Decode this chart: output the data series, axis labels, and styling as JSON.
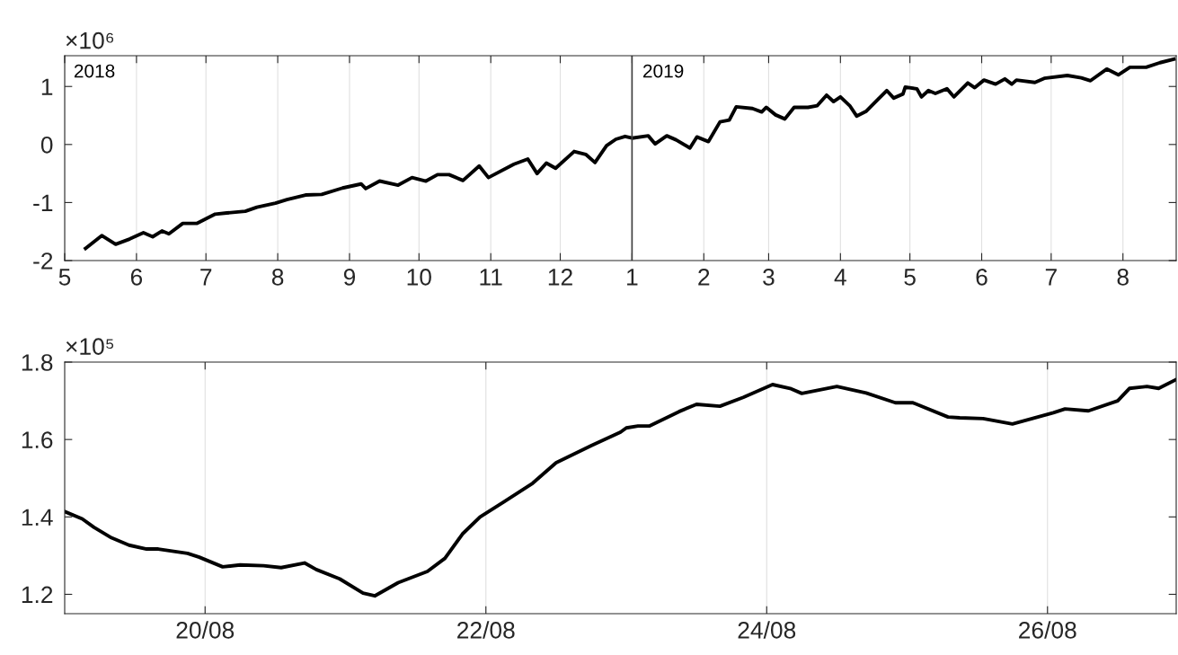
{
  "chart_data": [
    {
      "type": "line",
      "annotations": [
        "×10⁶",
        "2018"
      ],
      "x": [
        "2018-05-10",
        "2018-05-17",
        "2018-05-23",
        "2018-05-29",
        "2018-06-04",
        "2018-06-08",
        "2018-06-12",
        "2018-06-15",
        "2018-06-21",
        "2018-06-27",
        "2018-07-05",
        "2018-07-10",
        "2018-07-18",
        "2018-07-23",
        "2018-07-31",
        "2018-08-05",
        "2018-08-13",
        "2018-08-20",
        "2018-08-29",
        "2018-09-06",
        "2018-09-08",
        "2018-09-14",
        "2018-09-22",
        "2018-09-28",
        "2018-10-04",
        "2018-10-09",
        "2018-10-14",
        "2018-10-20",
        "2018-10-27",
        "2018-10-31",
        "2018-11-11",
        "2018-11-17",
        "2018-11-21",
        "2018-11-25",
        "2018-11-29",
        "2018-12-07",
        "2018-12-12",
        "2018-12-16",
        "2018-12-21",
        "2018-12-25",
        "2018-12-29",
        "2019-01-01",
        "2019-01-08",
        "2019-01-11",
        "2019-01-16",
        "2019-01-20",
        "2019-01-26",
        "2019-01-29",
        "2019-02-03",
        "2019-02-08",
        "2019-02-12",
        "2019-02-15",
        "2019-02-22",
        "2019-02-26",
        "2019-02-28",
        "2019-03-04",
        "2019-03-08",
        "2019-03-12",
        "2019-03-18",
        "2019-03-22",
        "2019-03-26",
        "2019-03-29",
        "2019-04-01",
        "2019-04-05",
        "2019-04-08",
        "2019-04-12",
        "2019-04-17",
        "2019-04-21",
        "2019-04-24",
        "2019-04-28",
        "2019-04-29",
        "2019-05-04",
        "2019-05-06",
        "2019-05-09",
        "2019-05-12",
        "2019-05-17",
        "2019-05-20",
        "2019-05-26",
        "2019-05-29",
        "2019-06-02",
        "2019-06-07",
        "2019-06-11",
        "2019-06-14",
        "2019-06-16",
        "2019-06-24",
        "2019-06-28",
        "2019-07-08",
        "2019-07-14",
        "2019-07-18",
        "2019-07-25",
        "2019-07-30",
        "2019-08-04",
        "2019-08-11",
        "2019-08-17",
        "2019-08-23"
      ],
      "series": [
        {
          "color": "#000000",
          "values": [
            -1.79,
            -1.57,
            -1.72,
            -1.63,
            -1.52,
            -1.59,
            -1.49,
            -1.54,
            -1.36,
            -1.36,
            -1.2,
            -1.18,
            -1.15,
            -1.08,
            -1.01,
            -0.95,
            -0.87,
            -0.86,
            -0.75,
            -0.68,
            -0.76,
            -0.63,
            -0.7,
            -0.57,
            -0.63,
            -0.52,
            -0.52,
            -0.62,
            -0.37,
            -0.57,
            -0.34,
            -0.25,
            -0.5,
            -0.32,
            -0.41,
            -0.12,
            -0.17,
            -0.31,
            -0.02,
            0.09,
            0.14,
            0.11,
            0.15,
            0.01,
            0.15,
            0.08,
            -0.06,
            0.13,
            0.05,
            0.39,
            0.42,
            0.65,
            0.62,
            0.56,
            0.64,
            0.51,
            0.44,
            0.64,
            0.64,
            0.67,
            0.85,
            0.74,
            0.82,
            0.67,
            0.49,
            0.57,
            0.77,
            0.93,
            0.8,
            0.87,
            0.99,
            0.96,
            0.82,
            0.93,
            0.88,
            0.96,
            0.82,
            1.06,
            0.98,
            1.11,
            1.04,
            1.13,
            1.04,
            1.11,
            1.07,
            1.14,
            1.19,
            1.15,
            1.1,
            1.3,
            1.2,
            1.33,
            1.33,
            1.41,
            1.47
          ]
        }
      ],
      "xlim": [
        "2018-05-01",
        "2019-08-24"
      ],
      "xticks": [
        {
          "value": "2018-05-01",
          "label": "5"
        },
        {
          "value": "2018-06-01",
          "label": "6"
        },
        {
          "value": "2018-07-01",
          "label": "7"
        },
        {
          "value": "2018-08-01",
          "label": "8"
        },
        {
          "value": "2018-09-01",
          "label": "9"
        },
        {
          "value": "2018-10-01",
          "label": "10"
        },
        {
          "value": "2018-11-01",
          "label": "11"
        },
        {
          "value": "2018-12-01",
          "label": "12"
        },
        {
          "value": "2019-01-01",
          "label": "1"
        },
        {
          "value": "2019-02-01",
          "label": "2"
        },
        {
          "value": "2019-03-01",
          "label": "3"
        },
        {
          "value": "2019-04-01",
          "label": "4"
        },
        {
          "value": "2019-05-01",
          "label": "5"
        },
        {
          "value": "2019-06-01",
          "label": "6"
        },
        {
          "value": "2019-07-01",
          "label": "7"
        },
        {
          "value": "2019-08-01",
          "label": "8"
        }
      ],
      "ylim": [
        -2,
        1.53
      ],
      "yticks": [
        -2,
        -1,
        0,
        1
      ],
      "ref_lines": [
        {
          "axis": "x",
          "value": "2019-01-01",
          "label": "2019",
          "color": "#404040"
        }
      ],
      "grid": "x"
    },
    {
      "type": "line",
      "annotations": [
        "×10⁵"
      ],
      "x": [
        "2019-08-19T00:00",
        "2019-08-19T03:00",
        "2019-08-19T05:00",
        "2019-08-19T08:00",
        "2019-08-19T11:00",
        "2019-08-19T14:00",
        "2019-08-19T16:00",
        "2019-08-19T21:00",
        "2019-08-19T23:00",
        "2019-08-20T03:00",
        "2019-08-20T06:00",
        "2019-08-20T10:00",
        "2019-08-20T13:00",
        "2019-08-20T17:00",
        "2019-08-20T19:00",
        "2019-08-20T23:00",
        "2019-08-21T03:00",
        "2019-08-21T05:00",
        "2019-08-21T09:00",
        "2019-08-21T14:00",
        "2019-08-21T17:00",
        "2019-08-21T20:00",
        "2019-08-21T23:00",
        "2019-08-22T03:00",
        "2019-08-22T08:00",
        "2019-08-22T12:00",
        "2019-08-22T18:00",
        "2019-08-22T23:00",
        "2019-08-23T00:00",
        "2019-08-23T02:00",
        "2019-08-23T04:00",
        "2019-08-23T09:00",
        "2019-08-23T12:00",
        "2019-08-23T16:00",
        "2019-08-23T20:00",
        "2019-08-24T01:00",
        "2019-08-24T04:00",
        "2019-08-24T06:00",
        "2019-08-24T12:00",
        "2019-08-24T17:00",
        "2019-08-24T22:00",
        "2019-08-25T01:00",
        "2019-08-25T07:00",
        "2019-08-25T09:00",
        "2019-08-25T13:00",
        "2019-08-25T18:00",
        "2019-08-26T01:00",
        "2019-08-26T03:00",
        "2019-08-26T07:00",
        "2019-08-26T12:00",
        "2019-08-26T14:00",
        "2019-08-26T17:00",
        "2019-08-26T19:00",
        "2019-08-26T22:00"
      ],
      "series": [
        {
          "color": "#000000",
          "values": [
            1.414,
            1.395,
            1.373,
            1.346,
            1.327,
            1.317,
            1.317,
            1.306,
            1.296,
            1.271,
            1.276,
            1.274,
            1.269,
            1.281,
            1.264,
            1.24,
            1.203,
            1.196,
            1.23,
            1.259,
            1.293,
            1.356,
            1.4,
            1.438,
            1.487,
            1.54,
            1.584,
            1.619,
            1.63,
            1.635,
            1.635,
            1.672,
            1.691,
            1.686,
            1.709,
            1.742,
            1.732,
            1.719,
            1.737,
            1.72,
            1.695,
            1.695,
            1.658,
            1.656,
            1.654,
            1.64,
            1.669,
            1.679,
            1.674,
            1.7,
            1.732,
            1.737,
            1.732,
            1.755
          ]
        }
      ],
      "xlim": [
        "2019-08-19T00:00",
        "2019-08-26T22:00"
      ],
      "xticks": [
        {
          "value": "2019-08-20",
          "label": "20/08"
        },
        {
          "value": "2019-08-22",
          "label": "22/08"
        },
        {
          "value": "2019-08-24",
          "label": "24/08"
        },
        {
          "value": "2019-08-26",
          "label": "26/08"
        }
      ],
      "ylim": [
        1.15,
        1.8
      ],
      "yticks": [
        1.2,
        1.4,
        1.6,
        1.8
      ],
      "grid": "x"
    }
  ]
}
